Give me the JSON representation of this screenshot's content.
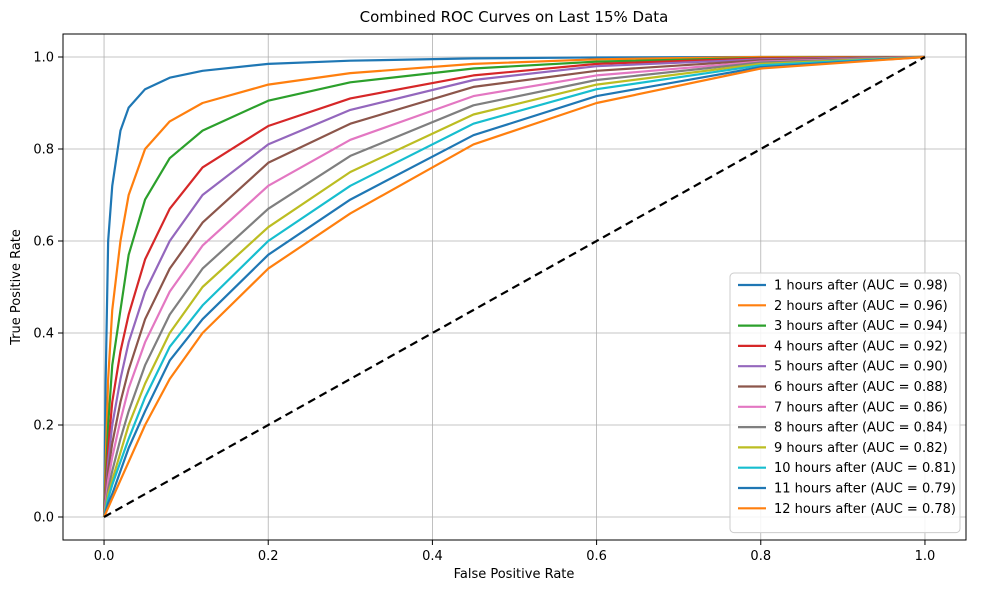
{
  "chart_data": {
    "type": "line",
    "title": "Combined ROC Curves on Last 15% Data",
    "xlabel": "False Positive Rate",
    "ylabel": "True Positive Rate",
    "xlim": [
      -0.05,
      1.05
    ],
    "ylim": [
      -0.05,
      1.05
    ],
    "xticks": [
      0.0,
      0.2,
      0.4,
      0.6,
      0.8,
      1.0
    ],
    "yticks": [
      0.0,
      0.2,
      0.4,
      0.6,
      0.8,
      1.0
    ],
    "xtick_labels": [
      "0.0",
      "0.2",
      "0.4",
      "0.6",
      "0.8",
      "1.0"
    ],
    "ytick_labels": [
      "0.0",
      "0.2",
      "0.4",
      "0.6",
      "0.8",
      "1.0"
    ],
    "grid": true,
    "legend_position": "lower-right",
    "series": [
      {
        "name": "1 hours after (AUC = 0.98)",
        "color": "#1f77b4",
        "x": [
          0,
          0.002,
          0.005,
          0.01,
          0.02,
          0.03,
          0.05,
          0.08,
          0.12,
          0.2,
          0.3,
          0.45,
          0.6,
          0.8,
          1.0
        ],
        "y": [
          0,
          0.3,
          0.6,
          0.72,
          0.84,
          0.89,
          0.93,
          0.955,
          0.97,
          0.985,
          0.992,
          0.997,
          0.999,
          1.0,
          1.0
        ]
      },
      {
        "name": "2 hours after (AUC = 0.96)",
        "color": "#ff7f0e",
        "x": [
          0,
          0.005,
          0.01,
          0.02,
          0.03,
          0.05,
          0.08,
          0.12,
          0.2,
          0.3,
          0.45,
          0.6,
          0.8,
          1.0
        ],
        "y": [
          0,
          0.3,
          0.45,
          0.6,
          0.7,
          0.8,
          0.86,
          0.9,
          0.94,
          0.965,
          0.985,
          0.995,
          1.0,
          1.0
        ]
      },
      {
        "name": "3 hours after (AUC = 0.94)",
        "color": "#2ca02c",
        "x": [
          0,
          0.005,
          0.01,
          0.02,
          0.03,
          0.05,
          0.08,
          0.12,
          0.2,
          0.3,
          0.45,
          0.6,
          0.8,
          1.0
        ],
        "y": [
          0,
          0.2,
          0.33,
          0.45,
          0.57,
          0.69,
          0.78,
          0.84,
          0.905,
          0.945,
          0.975,
          0.99,
          0.998,
          1.0
        ]
      },
      {
        "name": "4 hours after (AUC = 0.92)",
        "color": "#d62728",
        "x": [
          0,
          0.005,
          0.01,
          0.02,
          0.03,
          0.05,
          0.08,
          0.12,
          0.2,
          0.3,
          0.45,
          0.6,
          0.8,
          1.0
        ],
        "y": [
          0,
          0.15,
          0.25,
          0.36,
          0.44,
          0.56,
          0.67,
          0.76,
          0.85,
          0.91,
          0.96,
          0.985,
          0.997,
          1.0
        ]
      },
      {
        "name": "5 hours after (AUC = 0.90)",
        "color": "#9467bd",
        "x": [
          0,
          0.005,
          0.01,
          0.02,
          0.03,
          0.05,
          0.08,
          0.12,
          0.2,
          0.3,
          0.45,
          0.6,
          0.8,
          1.0
        ],
        "y": [
          0,
          0.12,
          0.2,
          0.3,
          0.38,
          0.49,
          0.6,
          0.7,
          0.81,
          0.885,
          0.95,
          0.98,
          0.995,
          1.0
        ]
      },
      {
        "name": "6 hours after (AUC = 0.88)",
        "color": "#8c564b",
        "x": [
          0,
          0.005,
          0.01,
          0.02,
          0.03,
          0.05,
          0.08,
          0.12,
          0.2,
          0.3,
          0.45,
          0.6,
          0.8,
          1.0
        ],
        "y": [
          0,
          0.1,
          0.16,
          0.25,
          0.32,
          0.43,
          0.54,
          0.64,
          0.77,
          0.855,
          0.935,
          0.97,
          0.993,
          1.0
        ]
      },
      {
        "name": "7 hours after (AUC = 0.86)",
        "color": "#e377c2",
        "x": [
          0,
          0.005,
          0.01,
          0.02,
          0.03,
          0.05,
          0.08,
          0.12,
          0.2,
          0.3,
          0.45,
          0.6,
          0.8,
          1.0
        ],
        "y": [
          0,
          0.08,
          0.13,
          0.21,
          0.28,
          0.38,
          0.49,
          0.59,
          0.72,
          0.82,
          0.915,
          0.96,
          0.99,
          1.0
        ]
      },
      {
        "name": "8 hours after (AUC = 0.84)",
        "color": "#7f7f7f",
        "x": [
          0,
          0.005,
          0.01,
          0.02,
          0.03,
          0.05,
          0.08,
          0.12,
          0.2,
          0.3,
          0.45,
          0.6,
          0.8,
          1.0
        ],
        "y": [
          0,
          0.06,
          0.1,
          0.17,
          0.23,
          0.33,
          0.44,
          0.54,
          0.67,
          0.785,
          0.895,
          0.95,
          0.988,
          1.0
        ]
      },
      {
        "name": "9 hours after (AUC = 0.82)",
        "color": "#bcbd22",
        "x": [
          0,
          0.005,
          0.01,
          0.02,
          0.03,
          0.05,
          0.08,
          0.12,
          0.2,
          0.3,
          0.45,
          0.6,
          0.8,
          1.0
        ],
        "y": [
          0,
          0.05,
          0.08,
          0.14,
          0.2,
          0.29,
          0.4,
          0.5,
          0.63,
          0.75,
          0.875,
          0.94,
          0.985,
          1.0
        ]
      },
      {
        "name": "10 hours after (AUC = 0.81)",
        "color": "#17becf",
        "x": [
          0,
          0.005,
          0.01,
          0.02,
          0.03,
          0.05,
          0.08,
          0.12,
          0.2,
          0.3,
          0.45,
          0.6,
          0.8,
          1.0
        ],
        "y": [
          0,
          0.04,
          0.07,
          0.12,
          0.17,
          0.26,
          0.37,
          0.46,
          0.6,
          0.72,
          0.855,
          0.93,
          0.982,
          1.0
        ]
      },
      {
        "name": "11 hours after (AUC = 0.79)",
        "color": "#1f77b4",
        "x": [
          0,
          0.005,
          0.01,
          0.02,
          0.03,
          0.05,
          0.08,
          0.12,
          0.2,
          0.3,
          0.45,
          0.6,
          0.8,
          1.0
        ],
        "y": [
          0,
          0.03,
          0.05,
          0.1,
          0.15,
          0.23,
          0.34,
          0.43,
          0.57,
          0.69,
          0.83,
          0.915,
          0.978,
          1.0
        ]
      },
      {
        "name": "12 hours after (AUC = 0.78)",
        "color": "#ff7f0e",
        "x": [
          0,
          0.005,
          0.01,
          0.02,
          0.03,
          0.05,
          0.08,
          0.12,
          0.2,
          0.3,
          0.45,
          0.6,
          0.8,
          1.0
        ],
        "y": [
          0,
          0.02,
          0.04,
          0.08,
          0.12,
          0.2,
          0.3,
          0.4,
          0.54,
          0.66,
          0.81,
          0.9,
          0.975,
          1.0
        ]
      }
    ],
    "reference_line": {
      "x": [
        0,
        1
      ],
      "y": [
        0,
        1
      ],
      "color": "#000000",
      "style": "dashed"
    }
  }
}
